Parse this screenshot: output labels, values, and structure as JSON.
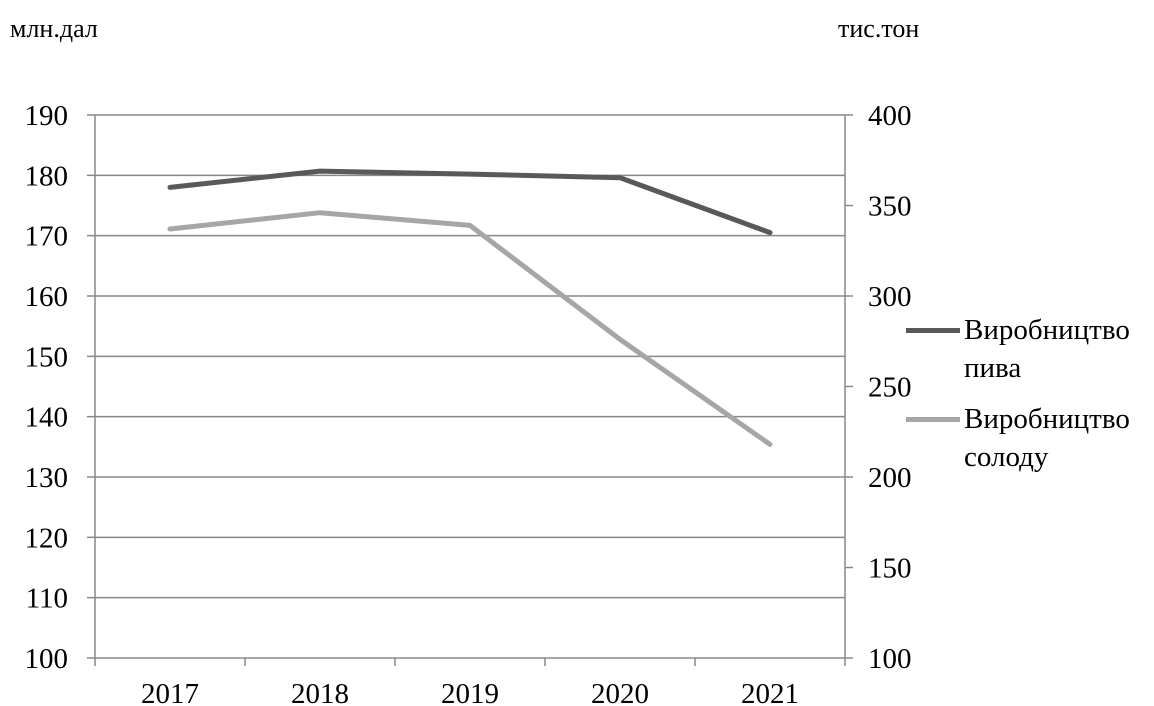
{
  "chart_data": {
    "type": "line",
    "x": [
      "2017",
      "2018",
      "2019",
      "2020",
      "2021"
    ],
    "y_left": {
      "label": "млн.дал",
      "range": [
        100,
        190
      ],
      "ticks": [
        "190",
        "180",
        "170",
        "160",
        "150",
        "140",
        "130",
        "120",
        "110",
        "100"
      ]
    },
    "y_right": {
      "label": "тис.тон",
      "range": [
        100,
        400
      ],
      "ticks": [
        "400",
        "350",
        "300",
        "250",
        "200",
        "150",
        "100"
      ]
    },
    "grid": true,
    "legend_position": "right",
    "series": [
      {
        "name": "Виробництво пива",
        "axis": "left",
        "color": "#595959",
        "values": [
          178,
          180.7,
          180.2,
          179.6,
          170.5
        ]
      },
      {
        "name": "Виробництво солоду",
        "axis": "right",
        "color": "#a6a6a6",
        "values": [
          337,
          346,
          339,
          276,
          218
        ]
      }
    ]
  },
  "legend": [
    {
      "line1": "Виробництво",
      "line2": "пива",
      "color": "#595959"
    },
    {
      "line1": "Виробництво",
      "line2": "солоду",
      "color": "#a6a6a6"
    }
  ]
}
